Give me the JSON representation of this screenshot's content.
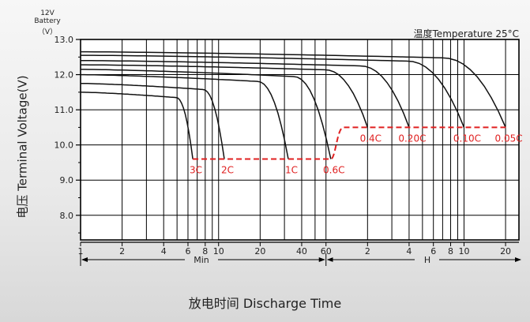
{
  "chart_data": {
    "type": "line",
    "unit_label": [
      "12V",
      "Battery",
      "（V）"
    ],
    "ylabel": "电压 Terminal Voltage(V)",
    "xlabel": "放电时间 Discharge Time",
    "temperature_note": "温度Temperature 25°C",
    "ylim": [
      7.3,
      13.0
    ],
    "y_ticks": [
      "13.0",
      "12.0",
      "11.0",
      "10.0",
      "9.0",
      "8.0"
    ],
    "x_scale": "log",
    "x_min_ticks": [
      "1",
      "2",
      "4",
      "6",
      "8",
      "10",
      "20",
      "40",
      "60"
    ],
    "x_hour_ticks": [
      "2",
      "4",
      "6",
      "8",
      "10",
      "20"
    ],
    "x_min_label": "Min",
    "x_hour_label": "H",
    "grid": true,
    "series": [
      {
        "name": "3C",
        "start_voltage": 11.5,
        "end_voltage": 9.6,
        "end_time_min": 6.5
      },
      {
        "name": "2C",
        "start_voltage": 11.75,
        "end_voltage": 9.6,
        "end_time_min": 11
      },
      {
        "name": "1C",
        "start_voltage": 12.0,
        "end_voltage": 9.6,
        "end_time_min": 32
      },
      {
        "name": "0.6C",
        "start_voltage": 12.15,
        "end_voltage": 9.6,
        "end_time_min": 65
      },
      {
        "name": "0.4C",
        "start_voltage": 12.28,
        "end_voltage": 10.5,
        "end_time_min": 120
      },
      {
        "name": "0.20C",
        "start_voltage": 12.4,
        "end_voltage": 10.5,
        "end_time_min": 240
      },
      {
        "name": "0.10C",
        "start_voltage": 12.55,
        "end_voltage": 10.5,
        "end_time_min": 600
      },
      {
        "name": "0.05C",
        "start_voltage": 12.65,
        "end_voltage": 10.5,
        "end_time_min": 1200
      }
    ],
    "cutoff_line": {
      "low_voltage": 9.6,
      "high_voltage": 10.5,
      "color": "#e02020"
    },
    "colors": {
      "curve": "#111111",
      "cutoff": "#e02020",
      "grid": "#000000"
    }
  }
}
